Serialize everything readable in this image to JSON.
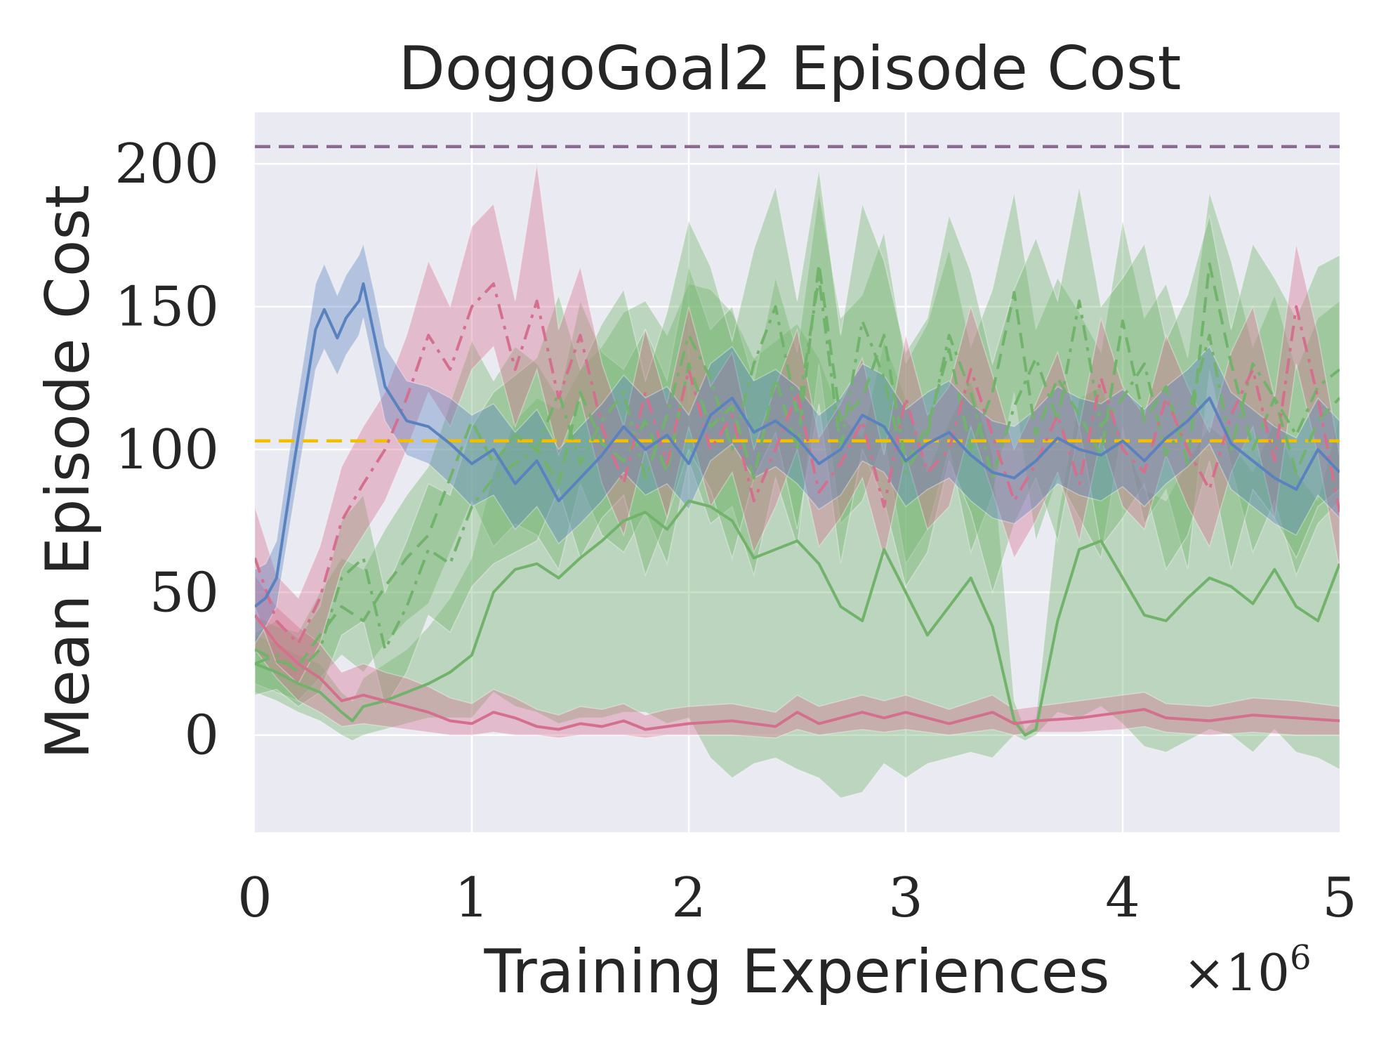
{
  "chart_data": {
    "type": "line",
    "title": "DoggoGoal2 Episode Cost",
    "xlabel": "Training Experiences",
    "ylabel": "Mean Episode Cost",
    "x_multiplier_base": "×10",
    "x_multiplier_exp": "6",
    "xlim": [
      0,
      5
    ],
    "ylim": [
      -34,
      218
    ],
    "xticks": [
      0,
      1,
      2,
      3,
      4,
      5
    ],
    "xtick_labels": [
      "0",
      "1",
      "2",
      "3",
      "4",
      "5"
    ],
    "yticks": [
      0,
      50,
      100,
      150,
      200
    ],
    "ytick_labels": [
      "0",
      "50",
      "100",
      "150",
      "200"
    ],
    "grid": true,
    "background": "#eaeaf2",
    "reference_lines": [
      {
        "name": "purple-dashed-reference",
        "y": 206,
        "color": "#8a6a90",
        "dash": "dashed"
      },
      {
        "name": "yellow-dashed-reference",
        "y": 103,
        "color": "#f2be00",
        "dash": "dashed"
      }
    ],
    "series": [
      {
        "name": "blue-solid",
        "color": "#5a82bf",
        "dash": "solid",
        "x": [
          0,
          0.05,
          0.1,
          0.18,
          0.28,
          0.32,
          0.38,
          0.42,
          0.48,
          0.5,
          0.55,
          0.6,
          0.7,
          0.8,
          0.9,
          1.0,
          1.1,
          1.2,
          1.3,
          1.4,
          1.5,
          1.6,
          1.7,
          1.8,
          1.9,
          2.0,
          2.1,
          2.2,
          2.3,
          2.4,
          2.5,
          2.6,
          2.7,
          2.8,
          2.9,
          3.0,
          3.1,
          3.2,
          3.3,
          3.4,
          3.5,
          3.6,
          3.7,
          3.8,
          3.9,
          4.0,
          4.1,
          4.2,
          4.3,
          4.4,
          4.5,
          4.6,
          4.7,
          4.8,
          4.9,
          5.0
        ],
        "values": [
          45,
          48,
          55,
          95,
          142,
          149,
          139,
          146,
          152,
          158,
          140,
          122,
          110,
          108,
          102,
          95,
          100,
          88,
          96,
          82,
          90,
          98,
          108,
          100,
          105,
          95,
          112,
          118,
          106,
          110,
          104,
          95,
          100,
          112,
          108,
          96,
          102,
          106,
          98,
          92,
          90,
          96,
          104,
          100,
          98,
          103,
          96,
          104,
          110,
          118,
          102,
          96,
          90,
          86,
          100,
          92
        ],
        "band_low": [
          32,
          38,
          45,
          82,
          128,
          135,
          126,
          133,
          140,
          146,
          128,
          110,
          98,
          95,
          88,
          80,
          84,
          72,
          80,
          67,
          74,
          82,
          92,
          84,
          88,
          79,
          96,
          102,
          90,
          94,
          88,
          79,
          84,
          96,
          92,
          80,
          86,
          90,
          82,
          76,
          74,
          80,
          88,
          84,
          82,
          87,
          80,
          88,
          94,
          102,
          86,
          80,
          74,
          70,
          84,
          76
        ],
        "band_high": [
          58,
          60,
          68,
          110,
          158,
          165,
          154,
          161,
          168,
          172,
          155,
          136,
          124,
          122,
          118,
          112,
          116,
          106,
          114,
          100,
          108,
          116,
          126,
          118,
          122,
          112,
          130,
          136,
          124,
          128,
          122,
          112,
          118,
          130,
          126,
          114,
          120,
          124,
          116,
          110,
          108,
          114,
          122,
          118,
          116,
          121,
          114,
          122,
          128,
          136,
          120,
          114,
          108,
          104,
          118,
          110
        ]
      },
      {
        "name": "pink-dashdot",
        "color": "#d46f8e",
        "dash": "dashdot",
        "x": [
          0,
          0.1,
          0.2,
          0.3,
          0.4,
          0.5,
          0.6,
          0.7,
          0.8,
          0.9,
          1.0,
          1.1,
          1.2,
          1.3,
          1.4,
          1.5,
          1.6,
          1.7,
          1.8,
          1.9,
          2.0,
          2.1,
          2.2,
          2.3,
          2.4,
          2.5,
          2.6,
          2.7,
          2.8,
          2.9,
          3.0,
          3.1,
          3.2,
          3.3,
          3.4,
          3.5,
          3.6,
          3.7,
          3.8,
          3.9,
          4.0,
          4.1,
          4.2,
          4.3,
          4.4,
          4.5,
          4.6,
          4.7,
          4.8,
          4.9,
          5.0
        ],
        "values": [
          62,
          40,
          32,
          48,
          75,
          88,
          100,
          118,
          140,
          128,
          150,
          158,
          128,
          152,
          118,
          140,
          108,
          88,
          120,
          95,
          128,
          100,
          112,
          82,
          100,
          120,
          85,
          95,
          110,
          80,
          118,
          92,
          100,
          128,
          105,
          82,
          95,
          112,
          88,
          125,
          100,
          92,
          118,
          100,
          86,
          112,
          128,
          96,
          150,
          118,
          78
        ],
        "band_low": [
          45,
          25,
          18,
          32,
          58,
          70,
          82,
          100,
          120,
          108,
          128,
          136,
          108,
          128,
          98,
          118,
          88,
          70,
          100,
          76,
          108,
          80,
          92,
          64,
          80,
          100,
          66,
          76,
          90,
          62,
          98,
          72,
          80,
          108,
          85,
          62,
          75,
          92,
          68,
          104,
          80,
          72,
          98,
          80,
          66,
          92,
          108,
          76,
          130,
          98,
          58
        ],
        "band_high": [
          80,
          56,
          48,
          66,
          94,
          108,
          120,
          140,
          166,
          150,
          178,
          186,
          152,
          200,
          142,
          164,
          130,
          108,
          142,
          116,
          150,
          122,
          134,
          100,
          122,
          142,
          104,
          116,
          132,
          98,
          140,
          112,
          122,
          150,
          126,
          100,
          116,
          134,
          108,
          146,
          122,
          112,
          140,
          122,
          106,
          134,
          150,
          118,
          172,
          140,
          98
        ]
      },
      {
        "name": "pink-solid",
        "color": "#d46f8e",
        "dash": "solid",
        "x": [
          0,
          0.1,
          0.2,
          0.3,
          0.4,
          0.5,
          0.6,
          0.7,
          0.8,
          0.9,
          1.0,
          1.1,
          1.2,
          1.3,
          1.4,
          1.5,
          1.6,
          1.7,
          1.8,
          1.9,
          2.0,
          2.2,
          2.4,
          2.5,
          2.6,
          2.8,
          2.9,
          3.0,
          3.2,
          3.4,
          3.5,
          3.6,
          3.8,
          4.0,
          4.1,
          4.2,
          4.4,
          4.6,
          4.8,
          5.0
        ],
        "values": [
          42,
          32,
          25,
          20,
          12,
          14,
          12,
          10,
          8,
          5,
          4,
          8,
          6,
          3,
          2,
          4,
          3,
          5,
          2,
          3,
          4,
          5,
          3,
          8,
          4,
          8,
          6,
          8,
          4,
          8,
          4,
          5,
          6,
          8,
          9,
          6,
          5,
          7,
          6,
          5
        ],
        "band_low": [
          30,
          20,
          12,
          8,
          3,
          4,
          3,
          2,
          1,
          0,
          0,
          1,
          0,
          0,
          -1,
          0,
          0,
          0,
          -1,
          0,
          0,
          0,
          -1,
          2,
          0,
          2,
          1,
          2,
          0,
          2,
          0,
          1,
          1,
          2,
          3,
          1,
          0,
          1,
          0,
          0
        ],
        "band_high": [
          56,
          45,
          38,
          32,
          22,
          25,
          22,
          20,
          17,
          13,
          11,
          16,
          13,
          9,
          7,
          10,
          9,
          11,
          7,
          9,
          10,
          11,
          8,
          14,
          10,
          14,
          12,
          14,
          9,
          14,
          9,
          10,
          12,
          14,
          15,
          11,
          10,
          13,
          12,
          10
        ]
      },
      {
        "name": "green-dashdot",
        "color": "#72b36c",
        "dash": "dashdot",
        "x": [
          0,
          0.1,
          0.2,
          0.3,
          0.4,
          0.5,
          0.6,
          0.7,
          0.8,
          0.9,
          1.0,
          1.1,
          1.2,
          1.3,
          1.4,
          1.5,
          1.6,
          1.7,
          1.8,
          1.9,
          2.0,
          2.1,
          2.2,
          2.3,
          2.4,
          2.5,
          2.6,
          2.7,
          2.8,
          2.9,
          3.0,
          3.1,
          3.2,
          3.3,
          3.4,
          3.5,
          3.6,
          3.7,
          3.8,
          3.9,
          4.0,
          4.1,
          4.2,
          4.3,
          4.4,
          4.5,
          4.6,
          4.7,
          4.8,
          4.9,
          5.0
        ],
        "values": [
          25,
          28,
          22,
          30,
          55,
          62,
          30,
          45,
          65,
          60,
          80,
          90,
          95,
          100,
          120,
          95,
          110,
          120,
          90,
          112,
          140,
          125,
          100,
          130,
          150,
          112,
          160,
          100,
          145,
          125,
          92,
          105,
          140,
          120,
          90,
          115,
          132,
          110,
          152,
          108,
          118,
          130,
          98,
          112,
          140,
          100,
          130,
          118,
          105,
          122,
          128
        ],
        "band_low": [
          14,
          16,
          10,
          15,
          35,
          40,
          10,
          22,
          42,
          36,
          52,
          60,
          64,
          68,
          86,
          62,
          76,
          84,
          56,
          76,
          100,
          86,
          62,
          90,
          106,
          72,
          116,
          60,
          100,
          82,
          52,
          64,
          96,
          78,
          50,
          74,
          90,
          68,
          108,
          66,
          76,
          88,
          58,
          70,
          96,
          58,
          86,
          76,
          62,
          80,
          86
        ],
        "band_high": [
          36,
          40,
          34,
          45,
          75,
          84,
          50,
          68,
          88,
          84,
          108,
          120,
          126,
          132,
          154,
          128,
          144,
          156,
          124,
          148,
          180,
          164,
          138,
          170,
          192,
          152,
          198,
          140,
          186,
          166,
          134,
          146,
          182,
          162,
          130,
          156,
          174,
          152,
          192,
          150,
          160,
          172,
          138,
          154,
          182,
          142,
          172,
          160,
          146,
          164,
          168
        ]
      },
      {
        "name": "green-dashed",
        "color": "#72b36c",
        "dash": "dashed",
        "x": [
          0,
          0.1,
          0.2,
          0.3,
          0.4,
          0.5,
          0.6,
          0.7,
          0.8,
          0.9,
          1.0,
          1.1,
          1.2,
          1.3,
          1.4,
          1.5,
          1.6,
          1.7,
          1.8,
          1.9,
          2.0,
          2.1,
          2.2,
          2.3,
          2.4,
          2.5,
          2.6,
          2.7,
          2.8,
          2.9,
          3.0,
          3.1,
          3.2,
          3.3,
          3.4,
          3.5,
          3.6,
          3.7,
          3.8,
          3.9,
          4.0,
          4.1,
          4.2,
          4.3,
          4.4,
          4.5,
          4.6,
          4.7,
          4.8,
          4.9,
          5.0
        ],
        "values": [
          30,
          26,
          24,
          35,
          45,
          40,
          52,
          62,
          70,
          90,
          110,
          95,
          105,
          100,
          88,
          120,
          102,
          96,
          110,
          92,
          130,
          108,
          115,
          90,
          125,
          100,
          165,
          110,
          118,
          140,
          95,
          108,
          135,
          100,
          120,
          155,
          105,
          125,
          112,
          98,
          145,
          110,
          122,
          95,
          165,
          130,
          100,
          118,
          92,
          110,
          118
        ],
        "band_low": [
          18,
          15,
          12,
          20,
          28,
          22,
          32,
          40,
          46,
          64,
          82,
          66,
          74,
          70,
          58,
          88,
          70,
          64,
          78,
          60,
          96,
          74,
          80,
          56,
          90,
          66,
          130,
          74,
          82,
          104,
          60,
          72,
          100,
          64,
          84,
          120,
          68,
          90,
          76,
          62,
          108,
          74,
          86,
          58,
          128,
          94,
          64,
          82,
          56,
          74,
          82
        ],
        "band_high": [
          42,
          38,
          36,
          50,
          62,
          58,
          72,
          84,
          94,
          116,
          138,
          124,
          136,
          130,
          118,
          152,
          134,
          128,
          142,
          124,
          164,
          142,
          150,
          124,
          160,
          134,
          190,
          146,
          154,
          176,
          130,
          144,
          170,
          136,
          156,
          190,
          142,
          160,
          148,
          134,
          180,
          146,
          158,
          132,
          190,
          166,
          136,
          154,
          128,
          146,
          152
        ]
      },
      {
        "name": "green-solid",
        "color": "#72b36c",
        "dash": "solid",
        "x": [
          0,
          0.1,
          0.2,
          0.3,
          0.4,
          0.45,
          0.5,
          0.6,
          0.7,
          0.8,
          0.9,
          1.0,
          1.1,
          1.2,
          1.3,
          1.4,
          1.5,
          1.6,
          1.7,
          1.8,
          1.9,
          2.0,
          2.1,
          2.2,
          2.3,
          2.4,
          2.5,
          2.6,
          2.7,
          2.8,
          2.9,
          3.0,
          3.1,
          3.2,
          3.3,
          3.4,
          3.5,
          3.55,
          3.6,
          3.7,
          3.8,
          3.9,
          4.0,
          4.1,
          4.2,
          4.3,
          4.4,
          4.5,
          4.6,
          4.7,
          4.8,
          4.9,
          5.0
        ],
        "values": [
          25,
          22,
          18,
          15,
          8,
          5,
          10,
          12,
          15,
          18,
          22,
          28,
          50,
          58,
          60,
          55,
          62,
          68,
          75,
          78,
          72,
          82,
          80,
          75,
          62,
          65,
          68,
          60,
          45,
          40,
          65,
          50,
          35,
          45,
          55,
          38,
          5,
          0,
          2,
          40,
          65,
          68,
          55,
          42,
          40,
          48,
          55,
          52,
          46,
          58,
          45,
          40,
          60
        ],
        "band_low": [
          15,
          12,
          8,
          5,
          0,
          -2,
          0,
          2,
          4,
          6,
          6,
          6,
          15,
          10,
          8,
          4,
          6,
          6,
          8,
          8,
          4,
          6,
          -8,
          -15,
          -10,
          -8,
          -12,
          -15,
          -22,
          -20,
          -10,
          -15,
          -10,
          -8,
          -6,
          -8,
          0,
          -2,
          0,
          8,
          6,
          10,
          4,
          -4,
          -6,
          -2,
          2,
          0,
          -6,
          2,
          -6,
          -8,
          -12
        ],
        "band_high": [
          35,
          32,
          28,
          25,
          15,
          12,
          20,
          25,
          30,
          38,
          48,
          62,
          92,
          110,
          118,
          114,
          128,
          136,
          148,
          152,
          140,
          158,
          156,
          148,
          132,
          138,
          144,
          132,
          112,
          104,
          138,
          118,
          92,
          110,
          124,
          98,
          12,
          2,
          6,
          76,
          118,
          122,
          104,
          86,
          82,
          96,
          108,
          102,
          92,
          110,
          92,
          82,
          112
        ]
      }
    ]
  }
}
